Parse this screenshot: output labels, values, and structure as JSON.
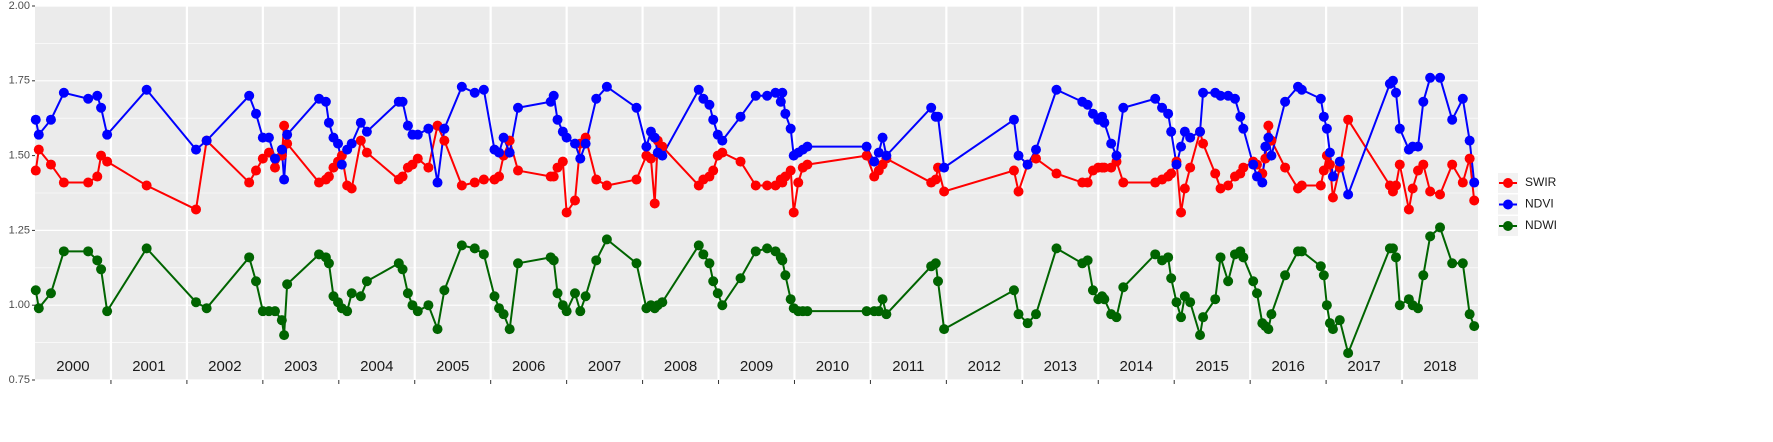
{
  "chart_data": {
    "type": "line",
    "x": [
      2000.01,
      2000.05,
      2000.21,
      2000.38,
      2000.7,
      2000.82,
      2000.87,
      2000.95,
      2001.47,
      2002.12,
      2002.26,
      2002.82,
      2002.91,
      2003.0,
      2003.08,
      2003.16,
      2003.25,
      2003.28,
      2003.32,
      2003.74,
      2003.83,
      2003.87,
      2003.93,
      2003.99,
      2004.04,
      2004.11,
      2004.17,
      2004.29,
      2004.37,
      2004.79,
      2004.84,
      2004.91,
      2004.97,
      2005.04,
      2005.18,
      2005.3,
      2005.39,
      2005.62,
      2005.79,
      2005.91,
      2006.05,
      2006.11,
      2006.17,
      2006.25,
      2006.36,
      2006.79,
      2006.83,
      2006.88,
      2006.95,
      2007.0,
      2007.11,
      2007.18,
      2007.25,
      2007.39,
      2007.53,
      2007.92,
      2008.05,
      2008.11,
      2008.16,
      2008.2,
      2008.26,
      2008.74,
      2008.8,
      2008.88,
      2008.93,
      2008.99,
      2009.05,
      2009.29,
      2009.49,
      2009.64,
      2009.75,
      2009.82,
      2009.84,
      2009.88,
      2009.95,
      2009.99,
      2010.05,
      2010.11,
      2010.17,
      2010.95,
      2011.05,
      2011.11,
      2011.16,
      2011.21,
      2011.8,
      2011.86,
      2011.89,
      2011.97,
      2012.89,
      2012.95,
      2013.07,
      2013.18,
      2013.45,
      2013.79,
      2013.86,
      2013.93,
      2014.0,
      2014.05,
      2014.08,
      2014.17,
      2014.24,
      2014.33,
      2014.75,
      2014.84,
      2014.92,
      2014.96,
      2015.03,
      2015.09,
      2015.14,
      2015.21,
      2015.34,
      2015.38,
      2015.54,
      2015.61,
      2015.71,
      2015.8,
      2015.87,
      2015.91,
      2016.04,
      2016.09,
      2016.16,
      2016.2,
      2016.24,
      2016.28,
      2016.46,
      2016.63,
      2016.68,
      2016.93,
      2016.97,
      2017.01,
      2017.05,
      2017.09,
      2017.18,
      2017.29,
      2017.84,
      2017.88,
      2017.92,
      2017.97,
      2018.09,
      2018.14,
      2018.21,
      2018.28,
      2018.37,
      2018.5,
      2018.66,
      2018.8,
      2018.89,
      2018.95
    ],
    "series": [
      {
        "name": "SWIR",
        "color": "#ff0000",
        "values": [
          1.45,
          1.52,
          1.47,
          1.41,
          1.41,
          1.43,
          1.5,
          1.48,
          1.4,
          1.32,
          1.55,
          1.41,
          1.45,
          1.49,
          1.51,
          1.46,
          1.5,
          1.6,
          1.54,
          1.41,
          1.42,
          1.43,
          1.46,
          1.48,
          1.5,
          1.4,
          1.39,
          1.55,
          1.51,
          1.42,
          1.43,
          1.46,
          1.47,
          1.49,
          1.46,
          1.6,
          1.55,
          1.4,
          1.41,
          1.42,
          1.42,
          1.43,
          1.5,
          1.55,
          1.45,
          1.43,
          1.43,
          1.46,
          1.48,
          1.31,
          1.35,
          1.54,
          1.56,
          1.42,
          1.4,
          1.42,
          1.5,
          1.49,
          1.34,
          1.55,
          1.53,
          1.4,
          1.42,
          1.43,
          1.45,
          1.5,
          1.51,
          1.48,
          1.4,
          1.4,
          1.4,
          1.42,
          1.41,
          1.43,
          1.45,
          1.31,
          1.41,
          1.46,
          1.47,
          1.5,
          1.43,
          1.45,
          1.47,
          1.49,
          1.41,
          1.42,
          1.46,
          1.38,
          1.45,
          1.38,
          1.47,
          1.49,
          1.44,
          1.41,
          1.41,
          1.45,
          1.46,
          1.46,
          1.46,
          1.46,
          1.48,
          1.41,
          1.41,
          1.42,
          1.43,
          1.44,
          1.48,
          1.31,
          1.39,
          1.46,
          1.58,
          1.54,
          1.44,
          1.39,
          1.4,
          1.43,
          1.44,
          1.46,
          1.48,
          1.47,
          1.44,
          1.49,
          1.6,
          1.55,
          1.46,
          1.39,
          1.4,
          1.4,
          1.45,
          1.5,
          1.47,
          1.36,
          1.46,
          1.62,
          1.4,
          1.38,
          1.4,
          1.47,
          1.32,
          1.39,
          1.45,
          1.47,
          1.38,
          1.37,
          1.47,
          1.41,
          1.49,
          1.35
        ]
      },
      {
        "name": "NDVI",
        "color": "#0000ff",
        "values": [
          1.62,
          1.57,
          1.62,
          1.71,
          1.69,
          1.7,
          1.66,
          1.57,
          1.72,
          1.52,
          1.55,
          1.7,
          1.64,
          1.56,
          1.56,
          1.49,
          1.52,
          1.42,
          1.57,
          1.69,
          1.68,
          1.61,
          1.56,
          1.54,
          1.47,
          1.52,
          1.54,
          1.61,
          1.58,
          1.68,
          1.68,
          1.6,
          1.57,
          1.57,
          1.59,
          1.41,
          1.59,
          1.73,
          1.71,
          1.72,
          1.52,
          1.51,
          1.56,
          1.51,
          1.66,
          1.68,
          1.7,
          1.62,
          1.58,
          1.56,
          1.54,
          1.49,
          1.54,
          1.69,
          1.73,
          1.66,
          1.53,
          1.58,
          1.56,
          1.51,
          1.5,
          1.72,
          1.69,
          1.67,
          1.62,
          1.57,
          1.55,
          1.63,
          1.7,
          1.7,
          1.71,
          1.68,
          1.71,
          1.64,
          1.59,
          1.5,
          1.51,
          1.52,
          1.53,
          1.53,
          1.48,
          1.51,
          1.56,
          1.5,
          1.66,
          1.63,
          1.63,
          1.46,
          1.62,
          1.5,
          1.47,
          1.52,
          1.72,
          1.68,
          1.67,
          1.64,
          1.62,
          1.63,
          1.61,
          1.54,
          1.5,
          1.66,
          1.69,
          1.66,
          1.64,
          1.58,
          1.47,
          1.53,
          1.58,
          1.56,
          1.58,
          1.71,
          1.71,
          1.7,
          1.7,
          1.69,
          1.63,
          1.59,
          1.47,
          1.43,
          1.41,
          1.53,
          1.56,
          1.5,
          1.68,
          1.73,
          1.72,
          1.69,
          1.63,
          1.59,
          1.51,
          1.43,
          1.48,
          1.37,
          1.74,
          1.75,
          1.71,
          1.59,
          1.52,
          1.53,
          1.53,
          1.68,
          1.76,
          1.76,
          1.62,
          1.69,
          1.55,
          1.41
        ]
      },
      {
        "name": "NDWI",
        "color": "#006400",
        "values": [
          1.05,
          0.99,
          1.04,
          1.18,
          1.18,
          1.15,
          1.12,
          0.98,
          1.19,
          1.01,
          0.99,
          1.16,
          1.08,
          0.98,
          0.98,
          0.98,
          0.95,
          0.9,
          1.07,
          1.17,
          1.16,
          1.14,
          1.03,
          1.01,
          0.99,
          0.98,
          1.04,
          1.03,
          1.08,
          1.14,
          1.12,
          1.04,
          1.0,
          0.98,
          1.0,
          0.92,
          1.05,
          1.2,
          1.19,
          1.17,
          1.03,
          0.99,
          0.97,
          0.92,
          1.14,
          1.16,
          1.15,
          1.04,
          1.0,
          0.98,
          1.04,
          0.98,
          1.03,
          1.15,
          1.22,
          1.14,
          0.99,
          1.0,
          0.99,
          1.0,
          1.01,
          1.2,
          1.17,
          1.14,
          1.08,
          1.04,
          1.0,
          1.09,
          1.18,
          1.19,
          1.18,
          1.16,
          1.15,
          1.1,
          1.02,
          0.99,
          0.98,
          0.98,
          0.98,
          0.98,
          0.98,
          0.98,
          1.02,
          0.97,
          1.13,
          1.14,
          1.08,
          0.92,
          1.05,
          0.97,
          0.94,
          0.97,
          1.19,
          1.14,
          1.15,
          1.05,
          1.02,
          1.03,
          1.02,
          0.97,
          0.96,
          1.06,
          1.17,
          1.15,
          1.16,
          1.09,
          1.01,
          0.96,
          1.03,
          1.01,
          0.9,
          0.96,
          1.02,
          1.16,
          1.08,
          1.17,
          1.18,
          1.16,
          1.08,
          1.04,
          0.94,
          0.93,
          0.92,
          0.97,
          1.1,
          1.18,
          1.18,
          1.13,
          1.1,
          1.0,
          0.94,
          0.92,
          0.95,
          0.84,
          1.19,
          1.19,
          1.16,
          1.0,
          1.02,
          1.0,
          0.99,
          1.1,
          1.23,
          1.26,
          1.14,
          1.14,
          0.97,
          0.93
        ]
      }
    ],
    "xlim": [
      2000,
      2019
    ],
    "xticks": [
      2001,
      2002,
      2003,
      2004,
      2005,
      2006,
      2007,
      2008,
      2009,
      2010,
      2011,
      2012,
      2013,
      2014,
      2015,
      2016,
      2017,
      2018
    ],
    "ylim": [
      0.75,
      2.0
    ],
    "yticks": [
      {
        "value": 0.75,
        "label": "0.75"
      },
      {
        "value": 1.0,
        "label": "1.00"
      },
      {
        "value": 1.25,
        "label": "1.25"
      },
      {
        "value": 1.5,
        "label": "1.50"
      },
      {
        "value": 1.75,
        "label": "1.75"
      },
      {
        "value": 2.0,
        "label": "2.00"
      }
    ],
    "panel_labels": [
      "2000",
      "2001",
      "2002",
      "2003",
      "2004",
      "2005",
      "2006",
      "2007",
      "2008",
      "2009",
      "2010",
      "2011",
      "2012",
      "2013",
      "2014",
      "2015",
      "2016",
      "2017",
      "2018"
    ],
    "grid": true,
    "minor_grid": true,
    "legend": "right"
  }
}
